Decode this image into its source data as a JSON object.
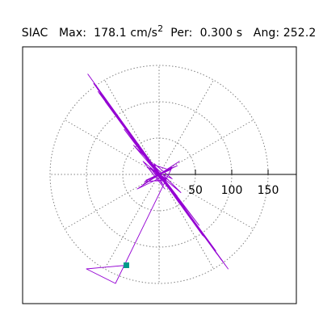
{
  "header": {
    "station": "SIAC",
    "max_label": "Max:",
    "max_value": "178.1",
    "max_unit": "cm/s",
    "max_unit_exp": "2",
    "period_label": "Per:",
    "period_value": "0.300 s",
    "angle_label": "Ang:",
    "angle_value": "252.2"
  },
  "colors": {
    "trace": "#9400d3",
    "end_marker": "#009b8b",
    "grid": "#808080",
    "axis": "#000000",
    "frame": "#000000"
  },
  "chart_data": {
    "type": "line",
    "title": "SIAC  Max: 178.1 cm/s2  Per: 0.300 s  Ang: 252.2",
    "coordinate_system": "polar",
    "units": "cm/s2",
    "rings": [
      50,
      100,
      150
    ],
    "radial_ticks": [
      50,
      100,
      150
    ],
    "tick_labels": [
      "50",
      "100",
      "150"
    ],
    "spoke_angles_deg": [
      0,
      30,
      60,
      90,
      120,
      150,
      180,
      210,
      240,
      270,
      300,
      330
    ],
    "grid": true,
    "max_amplitude": 178.1,
    "max_angle_deg": 252.2,
    "end_marker": "square",
    "series": [
      {
        "points": [
          [
            -3,
            2
          ],
          [
            6,
            -4
          ],
          [
            -8,
            5
          ],
          [
            10,
            -7
          ],
          [
            -12,
            9
          ],
          [
            5,
            -14
          ],
          [
            -7,
            15
          ],
          [
            18,
            -6
          ],
          [
            -16,
            10
          ],
          [
            8,
            -20
          ],
          [
            -22,
            18
          ],
          [
            30,
            -25
          ],
          [
            -35,
            40
          ],
          [
            25,
            -30
          ],
          [
            -15,
            22
          ],
          [
            40,
            -55
          ],
          [
            -48,
            62
          ],
          [
            55,
            -70
          ],
          [
            -60,
            82
          ],
          [
            70,
            -95
          ],
          [
            -75,
            105
          ],
          [
            82,
            -112
          ],
          [
            -85,
            118
          ],
          [
            88,
            -120
          ],
          [
            -80,
            110
          ],
          [
            72,
            -98
          ],
          [
            -65,
            88
          ],
          [
            58,
            -80
          ],
          [
            -70,
            95
          ],
          [
            78,
            -105
          ],
          [
            -90,
            125
          ],
          [
            95,
            -130
          ],
          [
            -98,
            138
          ],
          [
            92,
            -126
          ],
          [
            -84,
            114
          ],
          [
            75,
            -102
          ],
          [
            -66,
            92
          ],
          [
            60,
            -84
          ],
          [
            -52,
            72
          ],
          [
            44,
            -60
          ],
          [
            -36,
            50
          ],
          [
            30,
            -42
          ],
          [
            -40,
            55
          ],
          [
            48,
            -66
          ],
          [
            -56,
            78
          ],
          [
            62,
            -86
          ],
          [
            -70,
            96
          ],
          [
            76,
            -104
          ],
          [
            -82,
            112
          ],
          [
            86,
            -118
          ],
          [
            -78,
            108
          ],
          [
            70,
            -96
          ],
          [
            -62,
            86
          ],
          [
            54,
            -74
          ],
          [
            -46,
            64
          ],
          [
            40,
            -56
          ],
          [
            -34,
            48
          ],
          [
            28,
            -38
          ],
          [
            -38,
            52
          ],
          [
            46,
            -62
          ],
          [
            -54,
            74
          ],
          [
            60,
            -82
          ],
          [
            -66,
            90
          ],
          [
            72,
            -98
          ],
          [
            -78,
            106
          ],
          [
            80,
            -110
          ],
          [
            -74,
            100
          ],
          [
            66,
            -90
          ],
          [
            -58,
            80
          ],
          [
            50,
            -70
          ],
          [
            -42,
            58
          ],
          [
            36,
            -50
          ],
          [
            -30,
            42
          ],
          [
            24,
            -34
          ],
          [
            -32,
            44
          ],
          [
            38,
            -52
          ],
          [
            -44,
            60
          ],
          [
            50,
            -68
          ],
          [
            -56,
            76
          ],
          [
            60,
            -82
          ],
          [
            -52,
            72
          ],
          [
            44,
            -62
          ],
          [
            -36,
            52
          ],
          [
            30,
            -42
          ],
          [
            -24,
            34
          ],
          [
            20,
            -28
          ],
          [
            -26,
            36
          ],
          [
            32,
            -44
          ],
          [
            -38,
            52
          ],
          [
            42,
            -58
          ],
          [
            -34,
            48
          ],
          [
            28,
            -40
          ],
          [
            -22,
            32
          ],
          [
            18,
            -26
          ],
          [
            -14,
            20
          ],
          [
            12,
            -16
          ],
          [
            -18,
            24
          ],
          [
            22,
            -30
          ],
          [
            -16,
            22
          ],
          [
            12,
            -18
          ],
          [
            -8,
            12
          ],
          [
            6,
            -10
          ],
          [
            -12,
            8
          ],
          [
            10,
            -6
          ],
          [
            -6,
            4
          ],
          [
            4,
            -8
          ],
          [
            -20,
            -10
          ],
          [
            25,
            12
          ],
          [
            -18,
            -8
          ],
          [
            15,
            6
          ],
          [
            -10,
            14
          ],
          [
            8,
            -12
          ],
          [
            -5,
            6
          ],
          [
            3,
            -4
          ],
          [
            -30,
            -20
          ],
          [
            28,
            18
          ],
          [
            -22,
            -14
          ],
          [
            18,
            10
          ],
          [
            -60,
            -150
          ],
          [
            -100,
            -130
          ],
          [
            -45,
            -125
          ]
        ]
      }
    ]
  }
}
